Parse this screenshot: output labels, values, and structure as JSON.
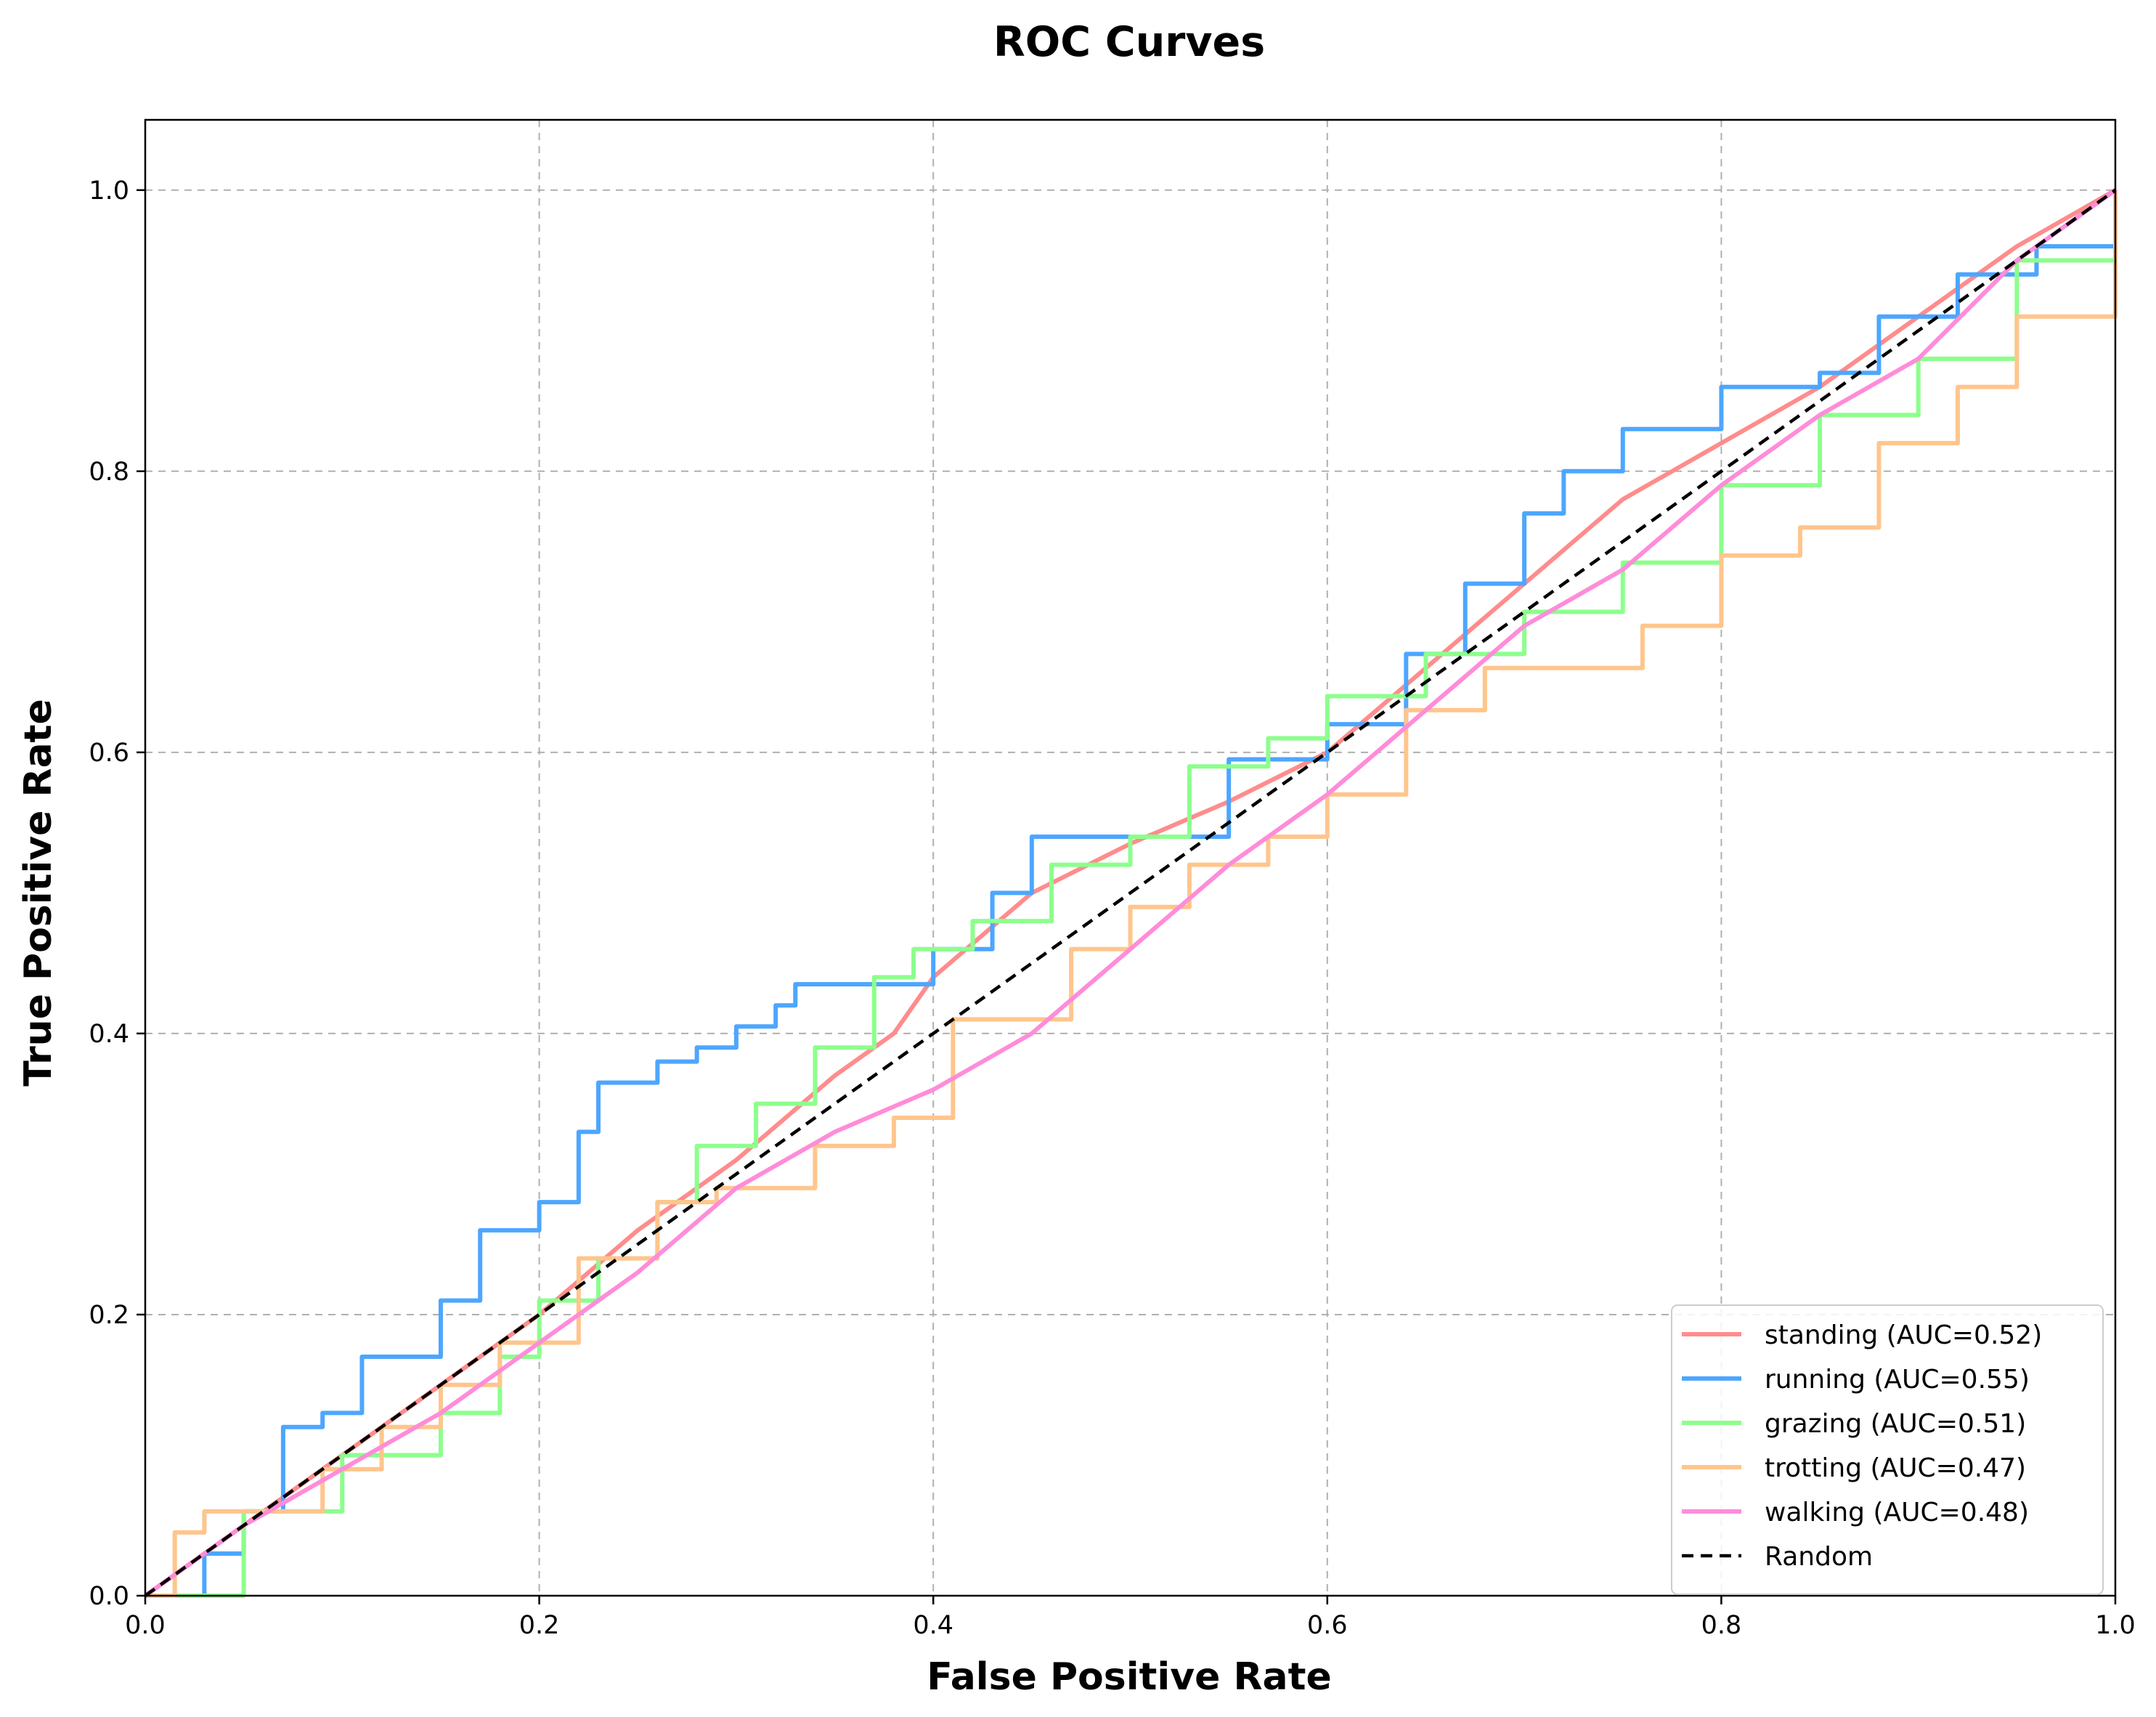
{
  "chart_data": {
    "type": "line",
    "title": "ROC Curves",
    "xlabel": "False Positive Rate",
    "ylabel": "True Positive Rate",
    "xlim": [
      0.0,
      1.0
    ],
    "ylim": [
      0.0,
      1.05
    ],
    "xticks": [
      "0.0",
      "0.2",
      "0.4",
      "0.6",
      "0.8",
      "1.0"
    ],
    "yticks": [
      "0.0",
      "0.2",
      "0.4",
      "0.6",
      "0.8",
      "1.0"
    ],
    "grid": true,
    "legend_position": "lower-right",
    "series": [
      {
        "name": "standing (AUC=0.52)",
        "color": "#ff8c8c",
        "style": "solid",
        "x": [
          0.0,
          0.05,
          0.1,
          0.15,
          0.2,
          0.25,
          0.3,
          0.35,
          0.38,
          0.4,
          0.45,
          0.5,
          0.55,
          0.6,
          0.65,
          0.7,
          0.75,
          0.8,
          0.85,
          0.9,
          0.95,
          1.0
        ],
        "y": [
          0.0,
          0.05,
          0.1,
          0.15,
          0.2,
          0.26,
          0.31,
          0.37,
          0.4,
          0.44,
          0.5,
          0.535,
          0.565,
          0.6,
          0.66,
          0.72,
          0.78,
          0.82,
          0.86,
          0.91,
          0.96,
          1.0
        ]
      },
      {
        "name": "running (AUC=0.55)",
        "color": "#4da6ff",
        "style": "step",
        "x": [
          0.0,
          0.03,
          0.05,
          0.07,
          0.09,
          0.11,
          0.13,
          0.15,
          0.17,
          0.2,
          0.22,
          0.23,
          0.26,
          0.28,
          0.3,
          0.32,
          0.33,
          0.37,
          0.4,
          0.43,
          0.45,
          0.5,
          0.55,
          0.6,
          0.64,
          0.67,
          0.7,
          0.72,
          0.75,
          0.8,
          0.85,
          0.88,
          0.92,
          0.96,
          1.0
        ],
        "y": [
          0.0,
          0.03,
          0.06,
          0.12,
          0.13,
          0.17,
          0.17,
          0.21,
          0.26,
          0.28,
          0.33,
          0.365,
          0.38,
          0.39,
          0.405,
          0.42,
          0.435,
          0.435,
          0.46,
          0.5,
          0.54,
          0.54,
          0.595,
          0.62,
          0.67,
          0.72,
          0.77,
          0.8,
          0.83,
          0.86,
          0.87,
          0.91,
          0.94,
          0.96,
          1.0
        ]
      },
      {
        "name": "grazing (AUC=0.51)",
        "color": "#8cff8c",
        "style": "step",
        "x": [
          0.0,
          0.05,
          0.1,
          0.15,
          0.18,
          0.2,
          0.23,
          0.26,
          0.28,
          0.31,
          0.34,
          0.37,
          0.39,
          0.42,
          0.46,
          0.5,
          0.53,
          0.57,
          0.6,
          0.65,
          0.7,
          0.75,
          0.8,
          0.85,
          0.9,
          0.95,
          1.0
        ],
        "y": [
          0.0,
          0.06,
          0.1,
          0.13,
          0.17,
          0.21,
          0.24,
          0.28,
          0.32,
          0.35,
          0.39,
          0.44,
          0.46,
          0.48,
          0.52,
          0.54,
          0.59,
          0.61,
          0.64,
          0.67,
          0.7,
          0.735,
          0.79,
          0.84,
          0.88,
          0.95,
          1.0
        ]
      },
      {
        "name": "trotting (AUC=0.47)",
        "color": "#ffc58c",
        "style": "step",
        "x": [
          0.0,
          0.015,
          0.03,
          0.07,
          0.09,
          0.12,
          0.15,
          0.18,
          0.22,
          0.26,
          0.29,
          0.34,
          0.38,
          0.41,
          0.44,
          0.47,
          0.5,
          0.53,
          0.57,
          0.6,
          0.64,
          0.68,
          0.72,
          0.76,
          0.8,
          0.84,
          0.88,
          0.92,
          0.95,
          0.97,
          1.0
        ],
        "y": [
          0.0,
          0.045,
          0.06,
          0.06,
          0.09,
          0.12,
          0.15,
          0.18,
          0.24,
          0.28,
          0.29,
          0.32,
          0.34,
          0.41,
          0.41,
          0.46,
          0.49,
          0.52,
          0.54,
          0.57,
          0.63,
          0.66,
          0.66,
          0.69,
          0.74,
          0.76,
          0.82,
          0.86,
          0.91,
          0.91,
          1.0
        ]
      },
      {
        "name": "walking (AUC=0.48)",
        "color": "#ff8cd9",
        "style": "solid",
        "x": [
          0.0,
          0.05,
          0.1,
          0.15,
          0.2,
          0.25,
          0.3,
          0.35,
          0.4,
          0.45,
          0.5,
          0.55,
          0.6,
          0.65,
          0.7,
          0.75,
          0.8,
          0.85,
          0.9,
          0.95,
          1.0
        ],
        "y": [
          0.0,
          0.05,
          0.09,
          0.13,
          0.18,
          0.23,
          0.29,
          0.33,
          0.36,
          0.4,
          0.46,
          0.52,
          0.57,
          0.63,
          0.69,
          0.73,
          0.79,
          0.84,
          0.88,
          0.95,
          1.0
        ]
      },
      {
        "name": "Random",
        "color": "#000000",
        "style": "dashed",
        "x": [
          0.0,
          1.0
        ],
        "y": [
          0.0,
          1.0
        ]
      }
    ]
  }
}
